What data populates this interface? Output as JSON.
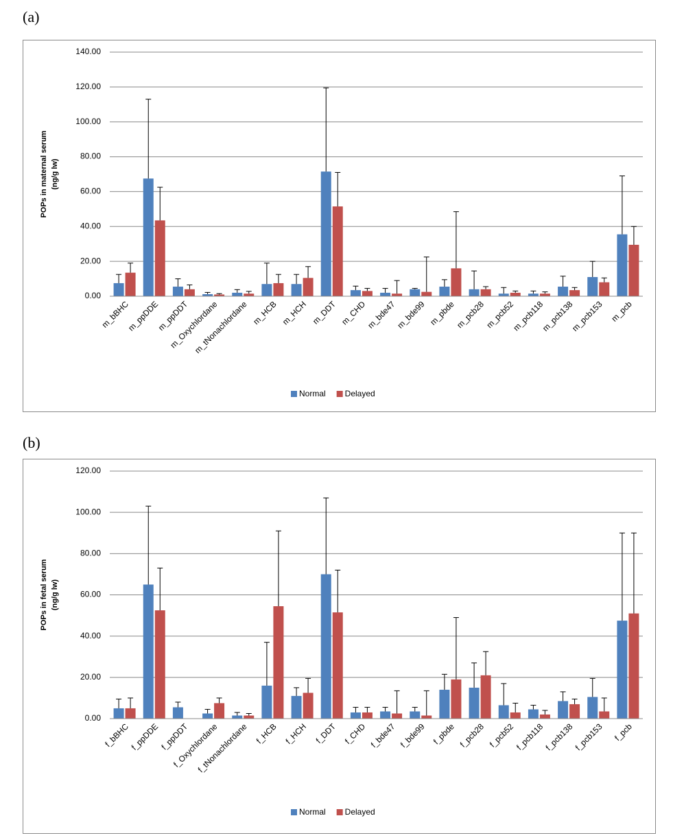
{
  "chart_data": [
    {
      "type": "bar",
      "panel_label": "(a)",
      "ylabel": [
        "POPs in maternal serum",
        "(ng/g lw)"
      ],
      "categories": [
        "m_bBHC",
        "m_ppDDE",
        "m_ppDDT",
        "m_Oxychlordane",
        "m_tNonachlordane",
        "m_HCB",
        "m_HCH",
        "m_DDT",
        "m_CHD",
        "m_bde47",
        "m_bde99",
        "m_pbde",
        "m_pcb28",
        "m_pcb52",
        "m_pcb118",
        "m_pcb138",
        "m_pcb153",
        "m_pcb"
      ],
      "series": [
        {
          "name": "Normal",
          "color": "#4f81bd",
          "values": [
            7.5,
            67.5,
            5.5,
            1.2,
            2,
            7,
            7,
            71.5,
            3.5,
            2,
            4,
            5.5,
            4,
            1.5,
            1.5,
            5.5,
            11,
            35.5
          ],
          "errors": [
            5,
            45.5,
            4.5,
            1,
            1.8,
            12,
            5.5,
            48,
            2.3,
            2.5,
            0.5,
            4,
            10.5,
            3.5,
            1.5,
            6,
            9,
            33.5
          ]
        },
        {
          "name": "Delayed",
          "color": "#c0504d",
          "values": [
            13.5,
            43.5,
            4,
            1,
            1.5,
            7.5,
            10.5,
            51.5,
            3,
            1.5,
            2.5,
            16,
            4,
            2,
            1.5,
            3.5,
            8,
            29.5
          ],
          "errors": [
            5.5,
            19,
            2.5,
            0.5,
            1.3,
            5,
            6.5,
            19.5,
            1.5,
            7.5,
            20,
            32.5,
            1.5,
            1,
            1,
            1.5,
            2.5,
            10.5
          ]
        }
      ],
      "ylim": [
        0,
        140
      ],
      "yticks": [
        {
          "value": 0,
          "label": "0.00"
        },
        {
          "value": 20,
          "label": "20.00"
        },
        {
          "value": 40,
          "label": "40.00"
        },
        {
          "value": 60,
          "label": "60.00"
        },
        {
          "value": 80,
          "label": "80.00"
        },
        {
          "value": 100,
          "label": "100.00"
        },
        {
          "value": 120,
          "label": "120.00"
        },
        {
          "value": 140,
          "label": "140.00"
        }
      ],
      "grid": true,
      "legend": "bottom"
    },
    {
      "type": "bar",
      "panel_label": "(b)",
      "ylabel": [
        "POPs in fetal serum",
        "(ng/g lw)"
      ],
      "categories": [
        "f_bBHC",
        "f_ppDDE",
        "f_ppDDT",
        "f_Oxychlordane",
        "f_tNonachlordane",
        "f_HCB",
        "f_HCH",
        "f_DDT",
        "f_CHD",
        "f_bde47",
        "f_bde99",
        "f_pbde",
        "f_pcb28",
        "f_pcb52",
        "f_pcb118",
        "f_pcb138",
        "f_pcb153",
        "f_pcb"
      ],
      "series": [
        {
          "name": "Normal",
          "color": "#4f81bd",
          "values": [
            5,
            65,
            5.5,
            2.5,
            1.5,
            16,
            11,
            70,
            3,
            3.5,
            3.5,
            14,
            15,
            6.5,
            4.5,
            8.5,
            10.5,
            47.5
          ],
          "errors": [
            4.5,
            38,
            2.5,
            2,
            1.5,
            21,
            4,
            37,
            2.5,
            2,
            2,
            7.5,
            12,
            10.5,
            2,
            4.5,
            9,
            42.5
          ]
        },
        {
          "name": "Delayed",
          "color": "#c0504d",
          "values": [
            5,
            52.5,
            null,
            7.5,
            1.5,
            54.5,
            12.5,
            51.5,
            3,
            2.5,
            1.5,
            19,
            21,
            3,
            2,
            7,
            3.5,
            51
          ],
          "errors": [
            5,
            20.5,
            null,
            2.5,
            1,
            36.5,
            7,
            20.5,
            2.5,
            11,
            12,
            30,
            11.5,
            4.5,
            2,
            2.5,
            6.5,
            39
          ]
        }
      ],
      "ylim": [
        0,
        120
      ],
      "yticks": [
        {
          "value": 0,
          "label": "0.00"
        },
        {
          "value": 20,
          "label": "20.00"
        },
        {
          "value": 40,
          "label": "40.00"
        },
        {
          "value": 60,
          "label": "60.00"
        },
        {
          "value": 80,
          "label": "80.00"
        },
        {
          "value": 100,
          "label": "100.00"
        },
        {
          "value": 120,
          "label": "120.00"
        }
      ],
      "grid": true,
      "legend": "bottom"
    }
  ]
}
